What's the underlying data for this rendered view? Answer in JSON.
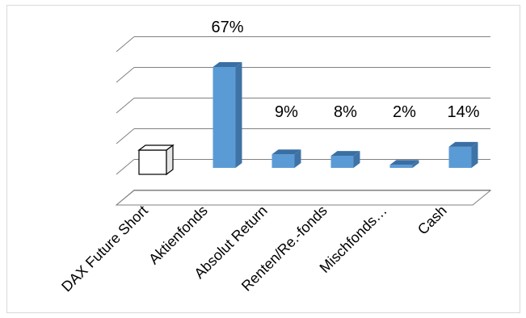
{
  "chart_data": {
    "type": "bar",
    "title": "",
    "xlabel": "",
    "ylabel": "",
    "categories": [
      "DAX Future Short",
      "Aktienfonds",
      "Absolut Return",
      "Renten/Re.-fonds",
      "Mischfonds…",
      "Cash"
    ],
    "values": [
      0,
      67,
      9,
      8,
      2,
      14
    ],
    "data_labels": [
      "",
      "67%",
      "9%",
      "8%",
      "2%",
      "14%"
    ],
    "ylim": [
      0,
      80
    ],
    "grid": true,
    "legend": "none",
    "three_d": true,
    "colors": {
      "bar_front": "#5b9bd5",
      "bar_side": "#3f73a6",
      "bar_top": "#3a6fa3",
      "empty_bar_fill": "#ffffff",
      "empty_bar_stroke": "#000000",
      "grid": "#808080"
    }
  }
}
